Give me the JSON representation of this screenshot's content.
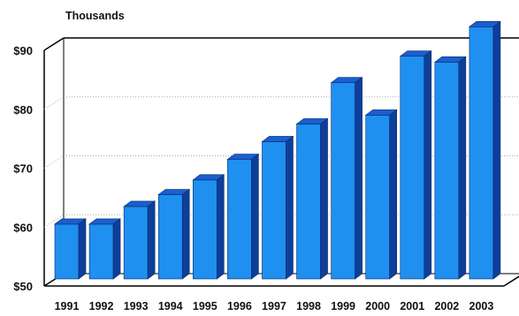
{
  "chart_data": {
    "type": "bar",
    "units_label": "Thousands",
    "categories": [
      "1991",
      "1992",
      "1993",
      "1994",
      "1995",
      "1996",
      "1997",
      "1998",
      "1999",
      "2000",
      "2001",
      "2002",
      "2003"
    ],
    "values": [
      60.5,
      60.5,
      63.5,
      65.5,
      68,
      71.5,
      74.5,
      77.5,
      84.5,
      79,
      89,
      88,
      94
    ],
    "ylim": [
      50,
      90
    ],
    "yticks": [
      50,
      60,
      70,
      80,
      90
    ],
    "ytick_labels": [
      "$50",
      "$60",
      "$70",
      "$80",
      "$90"
    ],
    "grid": true,
    "colors": {
      "bar_front": "#1f8ff0",
      "bar_top": "#1a5fd0",
      "bar_side": "#0d3f9a",
      "gridline": "#aaaaaa",
      "frame": "#000000"
    }
  }
}
